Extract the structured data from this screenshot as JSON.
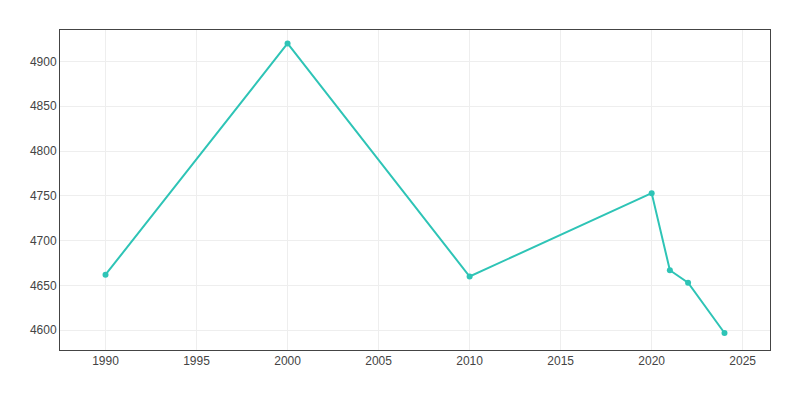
{
  "chart_data": {
    "type": "line",
    "x": [
      1990,
      2000,
      2010,
      2020,
      2021,
      2022,
      2024
    ],
    "values": [
      4662,
      4920,
      4660,
      4753,
      4667,
      4653,
      4597
    ],
    "color": "#2ec4b6",
    "marker": "circle",
    "line_style": "solid",
    "xlim": [
      1987.5,
      2026.5
    ],
    "ylim": [
      4578,
      4935
    ],
    "xticks": [
      1990,
      1995,
      2000,
      2005,
      2010,
      2015,
      2020,
      2025
    ],
    "yticks": [
      4600,
      4650,
      4700,
      4750,
      4800,
      4850,
      4900
    ],
    "grid": true
  }
}
